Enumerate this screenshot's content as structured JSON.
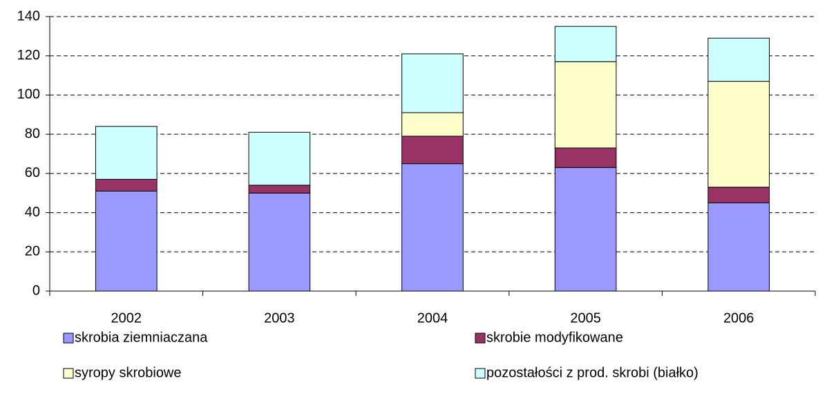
{
  "chart_data": {
    "type": "stacked_bar",
    "categories": [
      "2002",
      "2003",
      "2004",
      "2005",
      "2006"
    ],
    "series": [
      {
        "name": "skrobia ziemniaczana",
        "color": "#9999ff",
        "values": [
          51,
          50,
          65,
          63,
          45
        ]
      },
      {
        "name": "skrobie modyfikowane",
        "color": "#993366",
        "values": [
          6,
          4,
          14,
          10,
          8
        ]
      },
      {
        "name": "syropy skrobiowe",
        "color": "#ffffcc",
        "values": [
          0,
          0,
          12,
          44,
          54
        ]
      },
      {
        "name": "pozostałości z prod. skrobi (białko)",
        "color": "#ccffff",
        "values": [
          27,
          27,
          30,
          18,
          22
        ]
      }
    ],
    "ylim": [
      0,
      140
    ],
    "yticks": [
      0,
      20,
      40,
      60,
      80,
      100,
      120,
      140
    ],
    "grid": true
  }
}
